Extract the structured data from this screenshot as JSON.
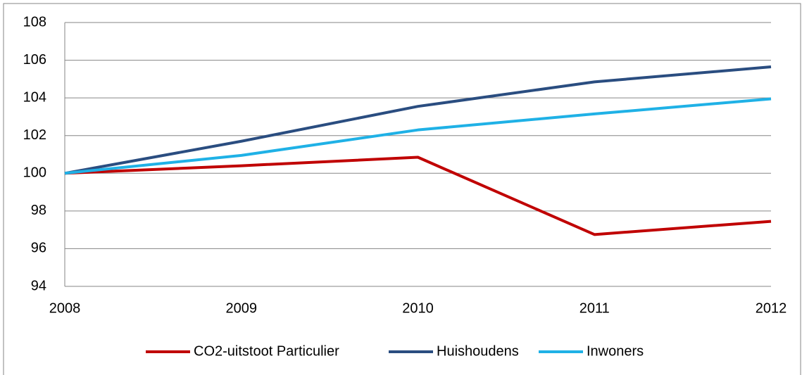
{
  "chart_data": {
    "type": "line",
    "x": [
      "2008",
      "2009",
      "2010",
      "2011",
      "2012"
    ],
    "series": [
      {
        "name": "CO2-uitstoot Particulier",
        "color": "#c00000",
        "values": [
          100,
          100.4,
          100.85,
          96.75,
          97.45
        ]
      },
      {
        "name": "Huishoudens",
        "color": "#2a4d80",
        "values": [
          100,
          101.7,
          103.55,
          104.85,
          105.65
        ]
      },
      {
        "name": "Inwoners",
        "color": "#1fb1e6",
        "values": [
          100,
          100.95,
          102.3,
          103.15,
          103.95
        ]
      }
    ],
    "ylim": [
      94,
      108
    ],
    "yticks": [
      94,
      96,
      98,
      100,
      102,
      104,
      106,
      108
    ],
    "grid": true,
    "legend": "bottom"
  }
}
